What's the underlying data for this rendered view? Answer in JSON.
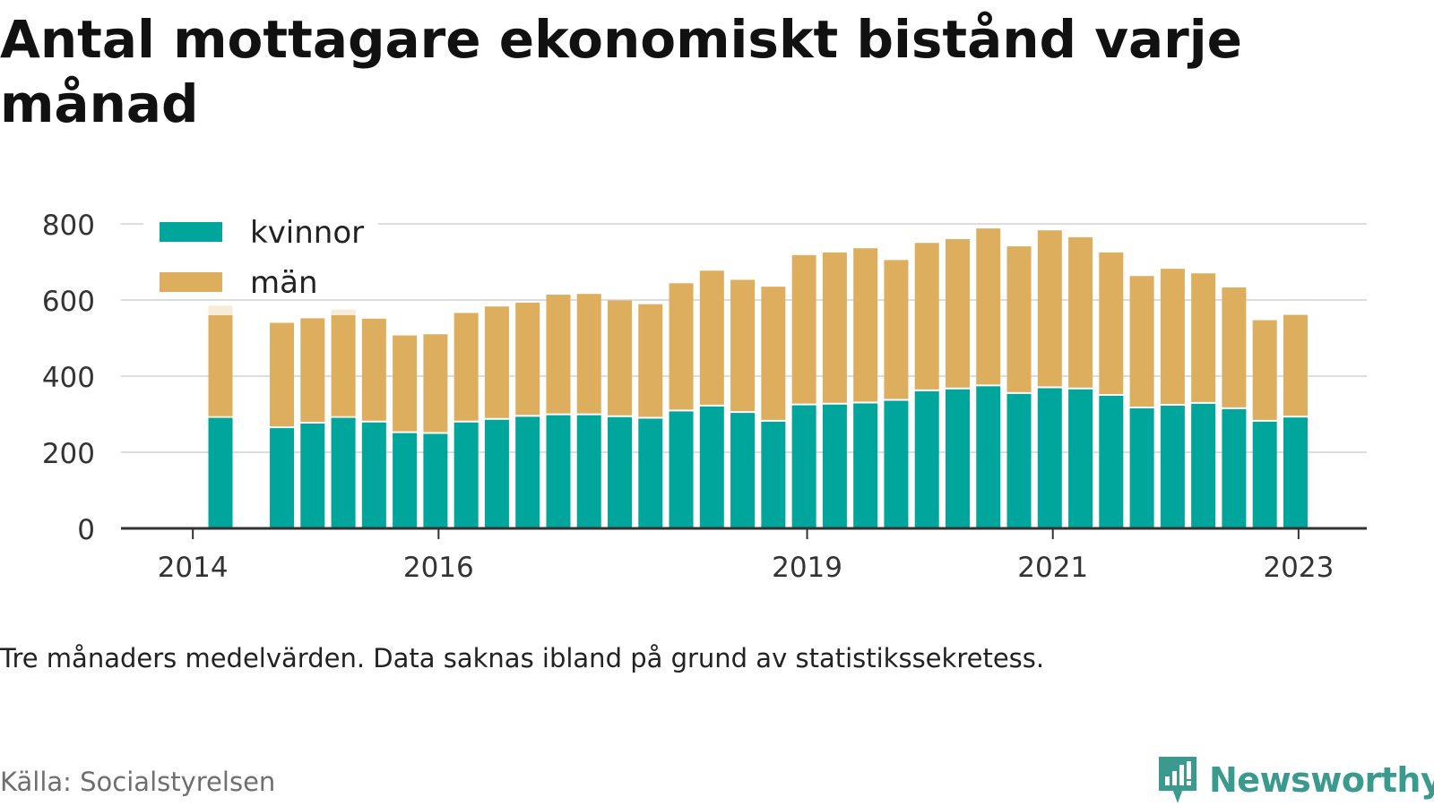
{
  "title": "Antal mottagare ekonomiskt bistånd varje månad",
  "footnote": "Tre månaders medelvärden. Data saknas ibland på grund av statistikssekretess.",
  "source": "Källa: Socialstyrelsen",
  "brand": {
    "name": "Newsworthy"
  },
  "colors": {
    "kvinnor": "#00a59b",
    "man": "#dcae5d",
    "faded": "#f7ecd8",
    "grid": "#dddddd",
    "axis": "#333333",
    "brand": "#3a9a8e"
  },
  "chart_data": {
    "type": "bar",
    "stacked": true,
    "ylim": [
      0,
      800
    ],
    "yticks": [
      0,
      200,
      400,
      600,
      800
    ],
    "x_tick_labels": [
      {
        "label": "2014",
        "index": -0.9
      },
      {
        "label": "2016",
        "index": 7.1
      },
      {
        "label": "2019",
        "index": 19.1
      },
      {
        "label": "2021",
        "index": 27.1
      },
      {
        "label": "2023",
        "index": 35.1
      }
    ],
    "legend": {
      "placement": "top-left",
      "entries": [
        "kvinnor",
        "män"
      ]
    },
    "series": [
      {
        "name": "kvinnor",
        "values": [
          295,
          null,
          268,
          280,
          295,
          283,
          255,
          253,
          283,
          290,
          298,
          302,
          302,
          297,
          293,
          312,
          325,
          308,
          285,
          328,
          330,
          333,
          340,
          365,
          370,
          378,
          358,
          373,
          370,
          353,
          320,
          327,
          332,
          318,
          285,
          296
        ]
      },
      {
        "name": "män",
        "values": [
          265,
          null,
          272,
          272,
          265,
          268,
          252,
          257,
          283,
          293,
          295,
          312,
          314,
          302,
          296,
          332,
          352,
          345,
          350,
          390,
          395,
          403,
          365,
          385,
          390,
          410,
          383,
          410,
          395,
          372,
          343,
          355,
          338,
          315,
          262,
          265
        ]
      }
    ],
    "faded_totals": [
      585,
      null,
      null,
      null,
      575
    ]
  }
}
